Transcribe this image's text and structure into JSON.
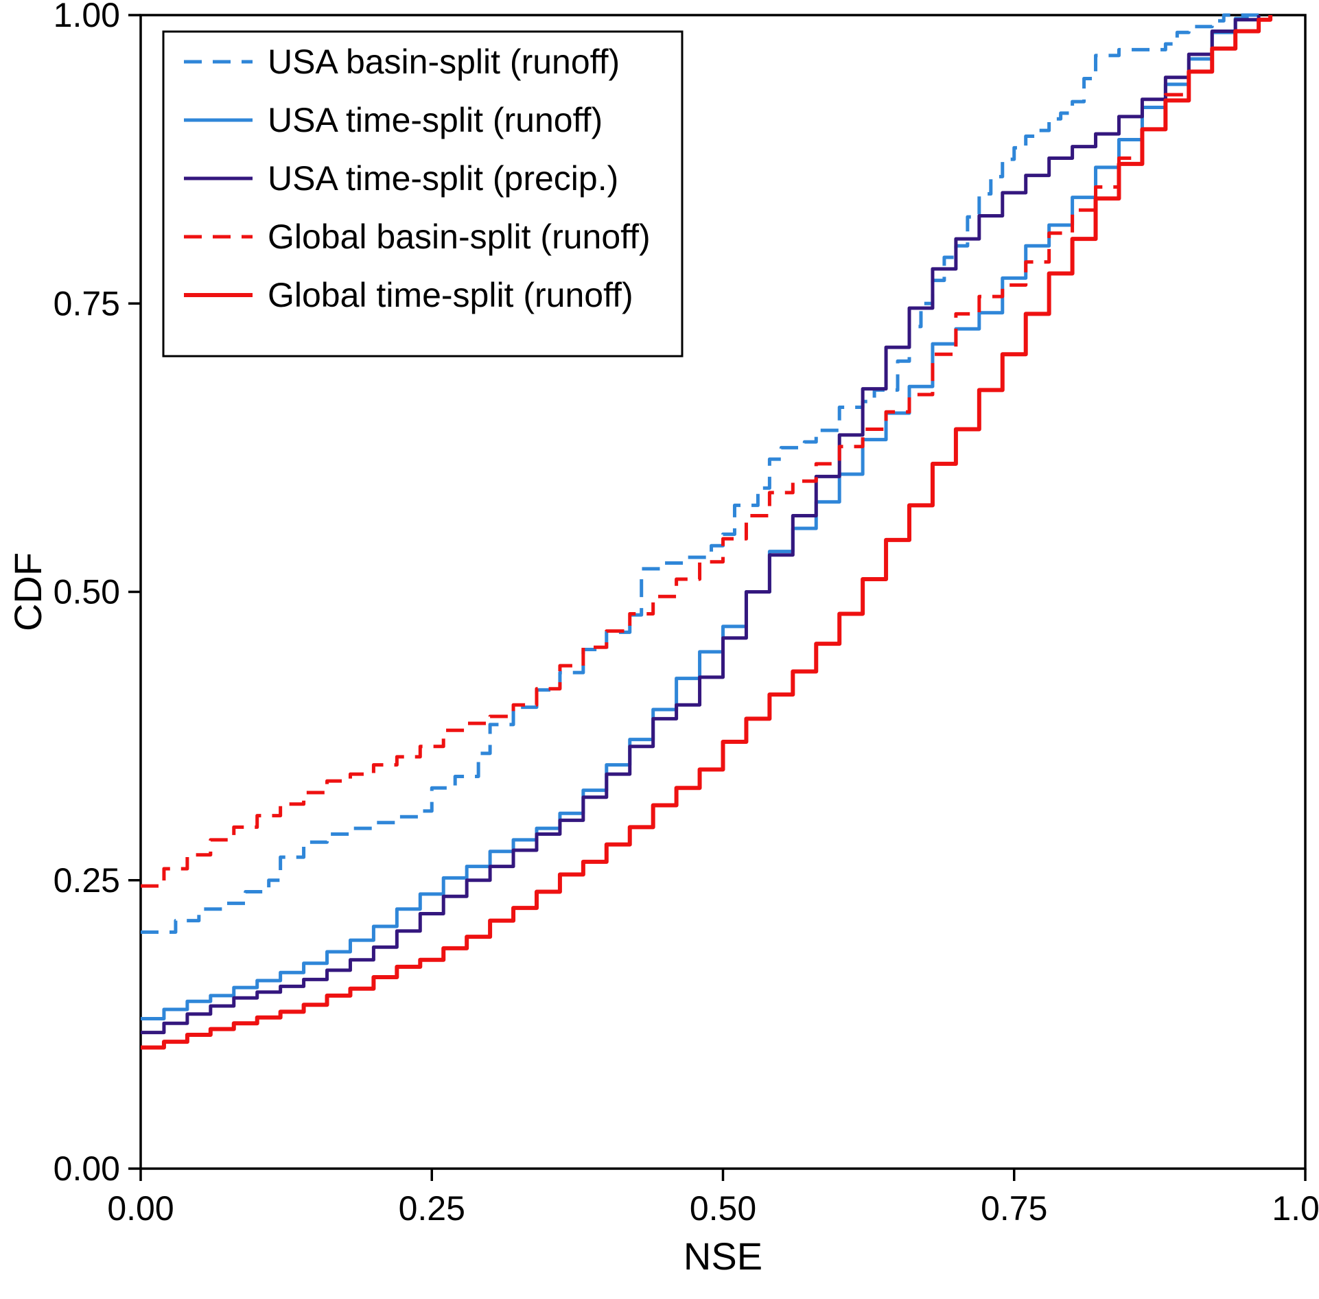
{
  "figure": {
    "background": "#ffffff",
    "frame_color": "#000000"
  },
  "chart_data": {
    "type": "line",
    "subtype": "empirical-cdf-step",
    "title": "",
    "xlabel": "NSE",
    "ylabel": "CDF",
    "xlim": [
      0.0,
      1.0
    ],
    "ylim": [
      0.0,
      1.0
    ],
    "xticks": [
      0.0,
      0.25,
      0.5,
      0.75,
      1.0
    ],
    "yticks": [
      0.0,
      0.25,
      0.5,
      0.75,
      1.0
    ],
    "tick_decimals": 2,
    "grid": false,
    "legend_position": "upper-left",
    "series": [
      {
        "name": "USA basin-split (runoff)",
        "color": "#2f86d8",
        "style": "dashed",
        "width": 5,
        "points": [
          [
            0.0,
            0.205
          ],
          [
            0.02,
            0.205
          ],
          [
            0.03,
            0.215
          ],
          [
            0.05,
            0.225
          ],
          [
            0.07,
            0.23
          ],
          [
            0.09,
            0.24
          ],
          [
            0.11,
            0.25
          ],
          [
            0.12,
            0.27
          ],
          [
            0.14,
            0.283
          ],
          [
            0.16,
            0.29
          ],
          [
            0.18,
            0.295
          ],
          [
            0.2,
            0.3
          ],
          [
            0.22,
            0.305
          ],
          [
            0.24,
            0.31
          ],
          [
            0.25,
            0.33
          ],
          [
            0.27,
            0.34
          ],
          [
            0.29,
            0.36
          ],
          [
            0.3,
            0.385
          ],
          [
            0.32,
            0.4
          ],
          [
            0.34,
            0.415
          ],
          [
            0.36,
            0.43
          ],
          [
            0.38,
            0.45
          ],
          [
            0.4,
            0.465
          ],
          [
            0.42,
            0.48
          ],
          [
            0.43,
            0.52
          ],
          [
            0.45,
            0.525
          ],
          [
            0.47,
            0.53
          ],
          [
            0.49,
            0.54
          ],
          [
            0.5,
            0.55
          ],
          [
            0.51,
            0.575
          ],
          [
            0.53,
            0.59
          ],
          [
            0.54,
            0.615
          ],
          [
            0.55,
            0.625
          ],
          [
            0.57,
            0.63
          ],
          [
            0.58,
            0.64
          ],
          [
            0.6,
            0.66
          ],
          [
            0.62,
            0.665
          ],
          [
            0.63,
            0.675
          ],
          [
            0.65,
            0.7
          ],
          [
            0.66,
            0.73
          ],
          [
            0.67,
            0.75
          ],
          [
            0.68,
            0.77
          ],
          [
            0.69,
            0.79
          ],
          [
            0.7,
            0.8
          ],
          [
            0.71,
            0.825
          ],
          [
            0.72,
            0.845
          ],
          [
            0.73,
            0.86
          ],
          [
            0.74,
            0.875
          ],
          [
            0.75,
            0.885
          ],
          [
            0.76,
            0.895
          ],
          [
            0.77,
            0.9
          ],
          [
            0.78,
            0.91
          ],
          [
            0.79,
            0.915
          ],
          [
            0.8,
            0.925
          ],
          [
            0.81,
            0.945
          ],
          [
            0.82,
            0.965
          ],
          [
            0.84,
            0.97
          ],
          [
            0.86,
            0.97
          ],
          [
            0.88,
            0.975
          ],
          [
            0.89,
            0.985
          ],
          [
            0.9,
            0.99
          ],
          [
            0.92,
            0.995
          ],
          [
            0.93,
            1.0
          ],
          [
            0.96,
            1.0
          ]
        ]
      },
      {
        "name": "USA time-split (runoff)",
        "color": "#2f86d8",
        "style": "solid",
        "width": 5,
        "points": [
          [
            0.0,
            0.13
          ],
          [
            0.02,
            0.138
          ],
          [
            0.04,
            0.145
          ],
          [
            0.06,
            0.15
          ],
          [
            0.08,
            0.157
          ],
          [
            0.1,
            0.163
          ],
          [
            0.12,
            0.17
          ],
          [
            0.14,
            0.178
          ],
          [
            0.16,
            0.188
          ],
          [
            0.18,
            0.198
          ],
          [
            0.2,
            0.21
          ],
          [
            0.22,
            0.225
          ],
          [
            0.24,
            0.238
          ],
          [
            0.26,
            0.252
          ],
          [
            0.28,
            0.262
          ],
          [
            0.3,
            0.275
          ],
          [
            0.32,
            0.285
          ],
          [
            0.34,
            0.295
          ],
          [
            0.36,
            0.308
          ],
          [
            0.38,
            0.328
          ],
          [
            0.4,
            0.35
          ],
          [
            0.42,
            0.372
          ],
          [
            0.44,
            0.398
          ],
          [
            0.46,
            0.425
          ],
          [
            0.48,
            0.448
          ],
          [
            0.5,
            0.47
          ],
          [
            0.52,
            0.5
          ],
          [
            0.54,
            0.535
          ],
          [
            0.56,
            0.555
          ],
          [
            0.58,
            0.578
          ],
          [
            0.6,
            0.602
          ],
          [
            0.62,
            0.632
          ],
          [
            0.64,
            0.655
          ],
          [
            0.66,
            0.678
          ],
          [
            0.68,
            0.715
          ],
          [
            0.7,
            0.728
          ],
          [
            0.72,
            0.742
          ],
          [
            0.74,
            0.772
          ],
          [
            0.76,
            0.8
          ],
          [
            0.78,
            0.818
          ],
          [
            0.8,
            0.842
          ],
          [
            0.82,
            0.868
          ],
          [
            0.84,
            0.892
          ],
          [
            0.86,
            0.92
          ],
          [
            0.88,
            0.94
          ],
          [
            0.9,
            0.962
          ],
          [
            0.92,
            0.985
          ],
          [
            0.94,
            0.997
          ],
          [
            0.95,
            1.0
          ]
        ]
      },
      {
        "name": "USA time-split (precip.)",
        "color": "#34177e",
        "style": "solid",
        "width": 5,
        "points": [
          [
            0.0,
            0.118
          ],
          [
            0.02,
            0.126
          ],
          [
            0.04,
            0.134
          ],
          [
            0.06,
            0.141
          ],
          [
            0.08,
            0.148
          ],
          [
            0.1,
            0.153
          ],
          [
            0.12,
            0.158
          ],
          [
            0.14,
            0.164
          ],
          [
            0.16,
            0.172
          ],
          [
            0.18,
            0.181
          ],
          [
            0.2,
            0.192
          ],
          [
            0.22,
            0.206
          ],
          [
            0.24,
            0.221
          ],
          [
            0.26,
            0.236
          ],
          [
            0.28,
            0.25
          ],
          [
            0.3,
            0.262
          ],
          [
            0.32,
            0.276
          ],
          [
            0.34,
            0.29
          ],
          [
            0.36,
            0.302
          ],
          [
            0.38,
            0.322
          ],
          [
            0.4,
            0.342
          ],
          [
            0.42,
            0.366
          ],
          [
            0.44,
            0.39
          ],
          [
            0.46,
            0.402
          ],
          [
            0.48,
            0.426
          ],
          [
            0.5,
            0.46
          ],
          [
            0.52,
            0.5
          ],
          [
            0.54,
            0.532
          ],
          [
            0.56,
            0.566
          ],
          [
            0.58,
            0.6
          ],
          [
            0.6,
            0.636
          ],
          [
            0.62,
            0.676
          ],
          [
            0.64,
            0.712
          ],
          [
            0.66,
            0.746
          ],
          [
            0.68,
            0.78
          ],
          [
            0.7,
            0.806
          ],
          [
            0.72,
            0.826
          ],
          [
            0.74,
            0.846
          ],
          [
            0.76,
            0.861
          ],
          [
            0.78,
            0.876
          ],
          [
            0.8,
            0.886
          ],
          [
            0.82,
            0.897
          ],
          [
            0.84,
            0.912
          ],
          [
            0.86,
            0.927
          ],
          [
            0.88,
            0.946
          ],
          [
            0.9,
            0.966
          ],
          [
            0.92,
            0.986
          ],
          [
            0.94,
            0.996
          ],
          [
            0.96,
            1.0
          ]
        ]
      },
      {
        "name": "Global basin-split (runoff)",
        "color": "#ee1111",
        "style": "dashed",
        "width": 5,
        "points": [
          [
            0.0,
            0.245
          ],
          [
            0.02,
            0.26
          ],
          [
            0.04,
            0.272
          ],
          [
            0.06,
            0.285
          ],
          [
            0.08,
            0.296
          ],
          [
            0.1,
            0.306
          ],
          [
            0.12,
            0.316
          ],
          [
            0.14,
            0.326
          ],
          [
            0.16,
            0.336
          ],
          [
            0.18,
            0.342
          ],
          [
            0.2,
            0.35
          ],
          [
            0.22,
            0.357
          ],
          [
            0.24,
            0.366
          ],
          [
            0.26,
            0.38
          ],
          [
            0.28,
            0.386
          ],
          [
            0.3,
            0.392
          ],
          [
            0.32,
            0.402
          ],
          [
            0.34,
            0.416
          ],
          [
            0.36,
            0.436
          ],
          [
            0.38,
            0.452
          ],
          [
            0.4,
            0.466
          ],
          [
            0.42,
            0.481
          ],
          [
            0.44,
            0.496
          ],
          [
            0.46,
            0.511
          ],
          [
            0.48,
            0.526
          ],
          [
            0.5,
            0.546
          ],
          [
            0.52,
            0.566
          ],
          [
            0.54,
            0.586
          ],
          [
            0.56,
            0.596
          ],
          [
            0.58,
            0.611
          ],
          [
            0.6,
            0.626
          ],
          [
            0.62,
            0.641
          ],
          [
            0.64,
            0.656
          ],
          [
            0.66,
            0.671
          ],
          [
            0.68,
            0.706
          ],
          [
            0.7,
            0.741
          ],
          [
            0.72,
            0.756
          ],
          [
            0.74,
            0.766
          ],
          [
            0.76,
            0.786
          ],
          [
            0.78,
            0.811
          ],
          [
            0.8,
            0.831
          ],
          [
            0.82,
            0.851
          ],
          [
            0.84,
            0.876
          ],
          [
            0.86,
            0.901
          ],
          [
            0.88,
            0.931
          ],
          [
            0.9,
            0.951
          ],
          [
            0.92,
            0.971
          ],
          [
            0.94,
            0.986
          ],
          [
            0.96,
            1.0
          ]
        ]
      },
      {
        "name": "Global time-split (runoff)",
        "color": "#ee1111",
        "style": "solid",
        "width": 6,
        "points": [
          [
            0.0,
            0.105
          ],
          [
            0.02,
            0.11
          ],
          [
            0.04,
            0.116
          ],
          [
            0.06,
            0.121
          ],
          [
            0.08,
            0.126
          ],
          [
            0.1,
            0.131
          ],
          [
            0.12,
            0.136
          ],
          [
            0.14,
            0.142
          ],
          [
            0.16,
            0.15
          ],
          [
            0.18,
            0.156
          ],
          [
            0.2,
            0.166
          ],
          [
            0.22,
            0.175
          ],
          [
            0.24,
            0.181
          ],
          [
            0.26,
            0.191
          ],
          [
            0.28,
            0.201
          ],
          [
            0.3,
            0.215
          ],
          [
            0.32,
            0.226
          ],
          [
            0.34,
            0.24
          ],
          [
            0.36,
            0.255
          ],
          [
            0.38,
            0.266
          ],
          [
            0.4,
            0.281
          ],
          [
            0.42,
            0.296
          ],
          [
            0.44,
            0.315
          ],
          [
            0.46,
            0.33
          ],
          [
            0.48,
            0.346
          ],
          [
            0.5,
            0.37
          ],
          [
            0.52,
            0.39
          ],
          [
            0.54,
            0.411
          ],
          [
            0.56,
            0.431
          ],
          [
            0.58,
            0.455
          ],
          [
            0.6,
            0.481
          ],
          [
            0.62,
            0.511
          ],
          [
            0.64,
            0.545
          ],
          [
            0.66,
            0.575
          ],
          [
            0.68,
            0.611
          ],
          [
            0.7,
            0.641
          ],
          [
            0.72,
            0.675
          ],
          [
            0.74,
            0.706
          ],
          [
            0.76,
            0.741
          ],
          [
            0.78,
            0.776
          ],
          [
            0.8,
            0.806
          ],
          [
            0.82,
            0.841
          ],
          [
            0.84,
            0.871
          ],
          [
            0.86,
            0.901
          ],
          [
            0.88,
            0.926
          ],
          [
            0.9,
            0.951
          ],
          [
            0.92,
            0.971
          ],
          [
            0.94,
            0.986
          ],
          [
            0.96,
            0.996
          ],
          [
            0.97,
            1.0
          ]
        ]
      }
    ]
  }
}
